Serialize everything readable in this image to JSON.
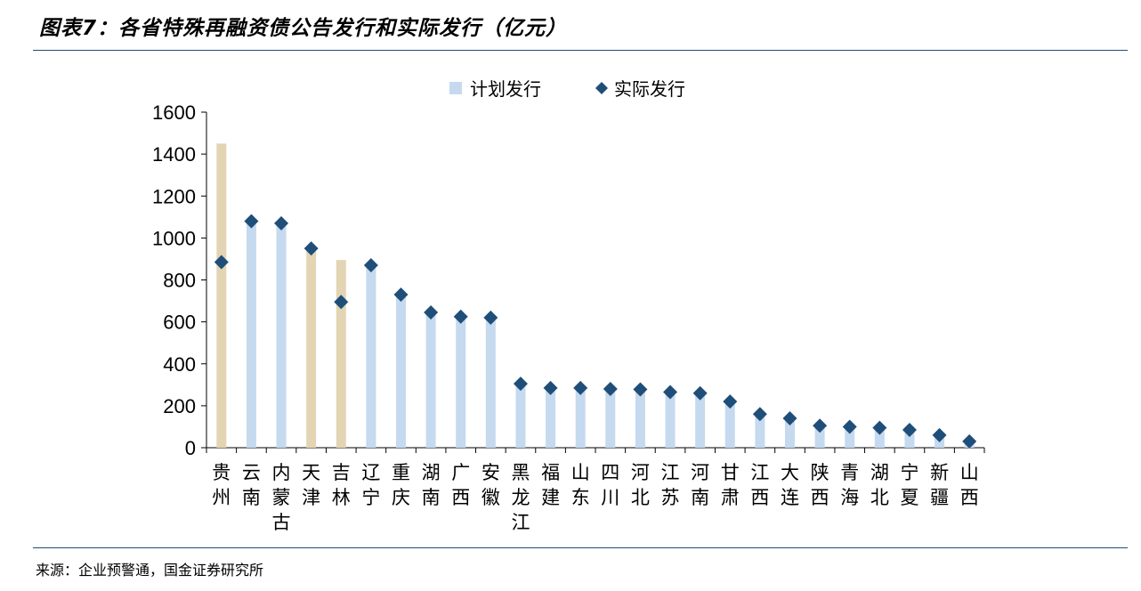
{
  "title": "图表7：各省特殊再融资债公告发行和实际发行（亿元）",
  "source": "来源：企业预警通，国金证券研究所",
  "colors": {
    "planned": "#c5d9ef",
    "planned_highlight": "#e3d5b3",
    "actual": "#1f4e79",
    "rule": "#1f4e79",
    "axis": "#000000"
  },
  "chart_data": {
    "type": "bar",
    "title": "图表7：各省特殊再融资债公告发行和实际发行（亿元）",
    "xlabel": "",
    "ylabel": "",
    "ylim": [
      0,
      1600
    ],
    "yticks": [
      0,
      200,
      400,
      600,
      800,
      1000,
      1200,
      1400,
      1600
    ],
    "grid": false,
    "legend": "top-center",
    "categories": [
      "贵州",
      "云南",
      "内蒙古",
      "天津",
      "吉林",
      "辽宁",
      "重庆",
      "湖南",
      "广西",
      "安徽",
      "黑龙江",
      "福建",
      "山东",
      "四川",
      "河北",
      "江苏",
      "河南",
      "甘肃",
      "江西",
      "大连",
      "陕西",
      "青海",
      "湖北",
      "宁夏",
      "新疆",
      "山西"
    ],
    "highlighted_categories": [
      "贵州",
      "天津",
      "吉林"
    ],
    "series": [
      {
        "name": "计划发行",
        "kind": "bar",
        "values": [
          1450,
          1080,
          1070,
          950,
          895,
          870,
          730,
          645,
          625,
          620,
          305,
          285,
          285,
          280,
          278,
          265,
          260,
          220,
          160,
          140,
          105,
          100,
          95,
          85,
          60,
          30
        ]
      },
      {
        "name": "实际发行",
        "kind": "diamond",
        "values": [
          885,
          1080,
          1070,
          950,
          695,
          870,
          730,
          645,
          625,
          620,
          305,
          285,
          285,
          280,
          278,
          265,
          260,
          220,
          160,
          140,
          105,
          100,
          95,
          85,
          60,
          30
        ]
      }
    ]
  }
}
